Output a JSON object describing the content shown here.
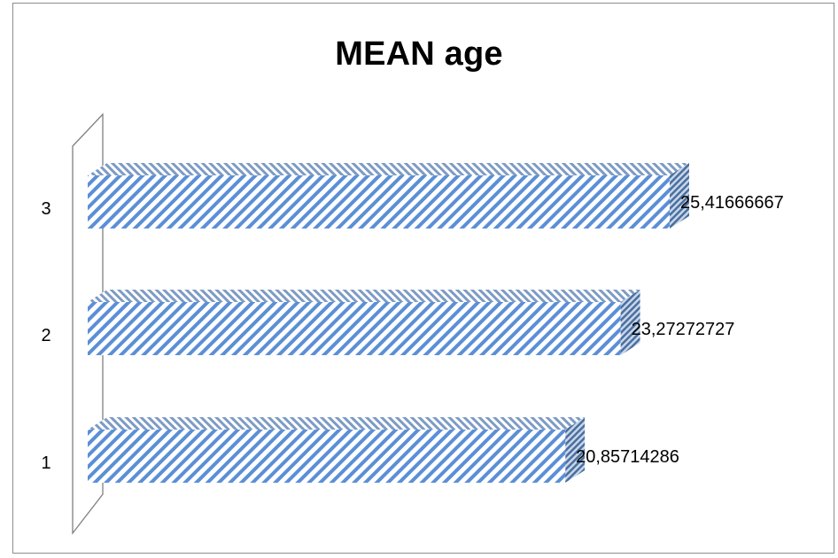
{
  "chart_data": {
    "type": "bar",
    "orientation": "horizontal",
    "title": "MEAN age",
    "categories": [
      "1",
      "2",
      "3"
    ],
    "values": [
      20.85714286,
      23.27272727,
      25.41666667
    ],
    "data_labels": [
      "20,85714286",
      "23,27272727",
      "25,41666667"
    ],
    "xlim": [
      0,
      27
    ],
    "grid": false,
    "legend": "none",
    "style": "3d-hatched",
    "colors": {
      "bar_stripe": "#5b8fd6",
      "bar_background": "#ffffff",
      "side_stripe": "#4a6f9e",
      "wall": "#808080"
    }
  }
}
